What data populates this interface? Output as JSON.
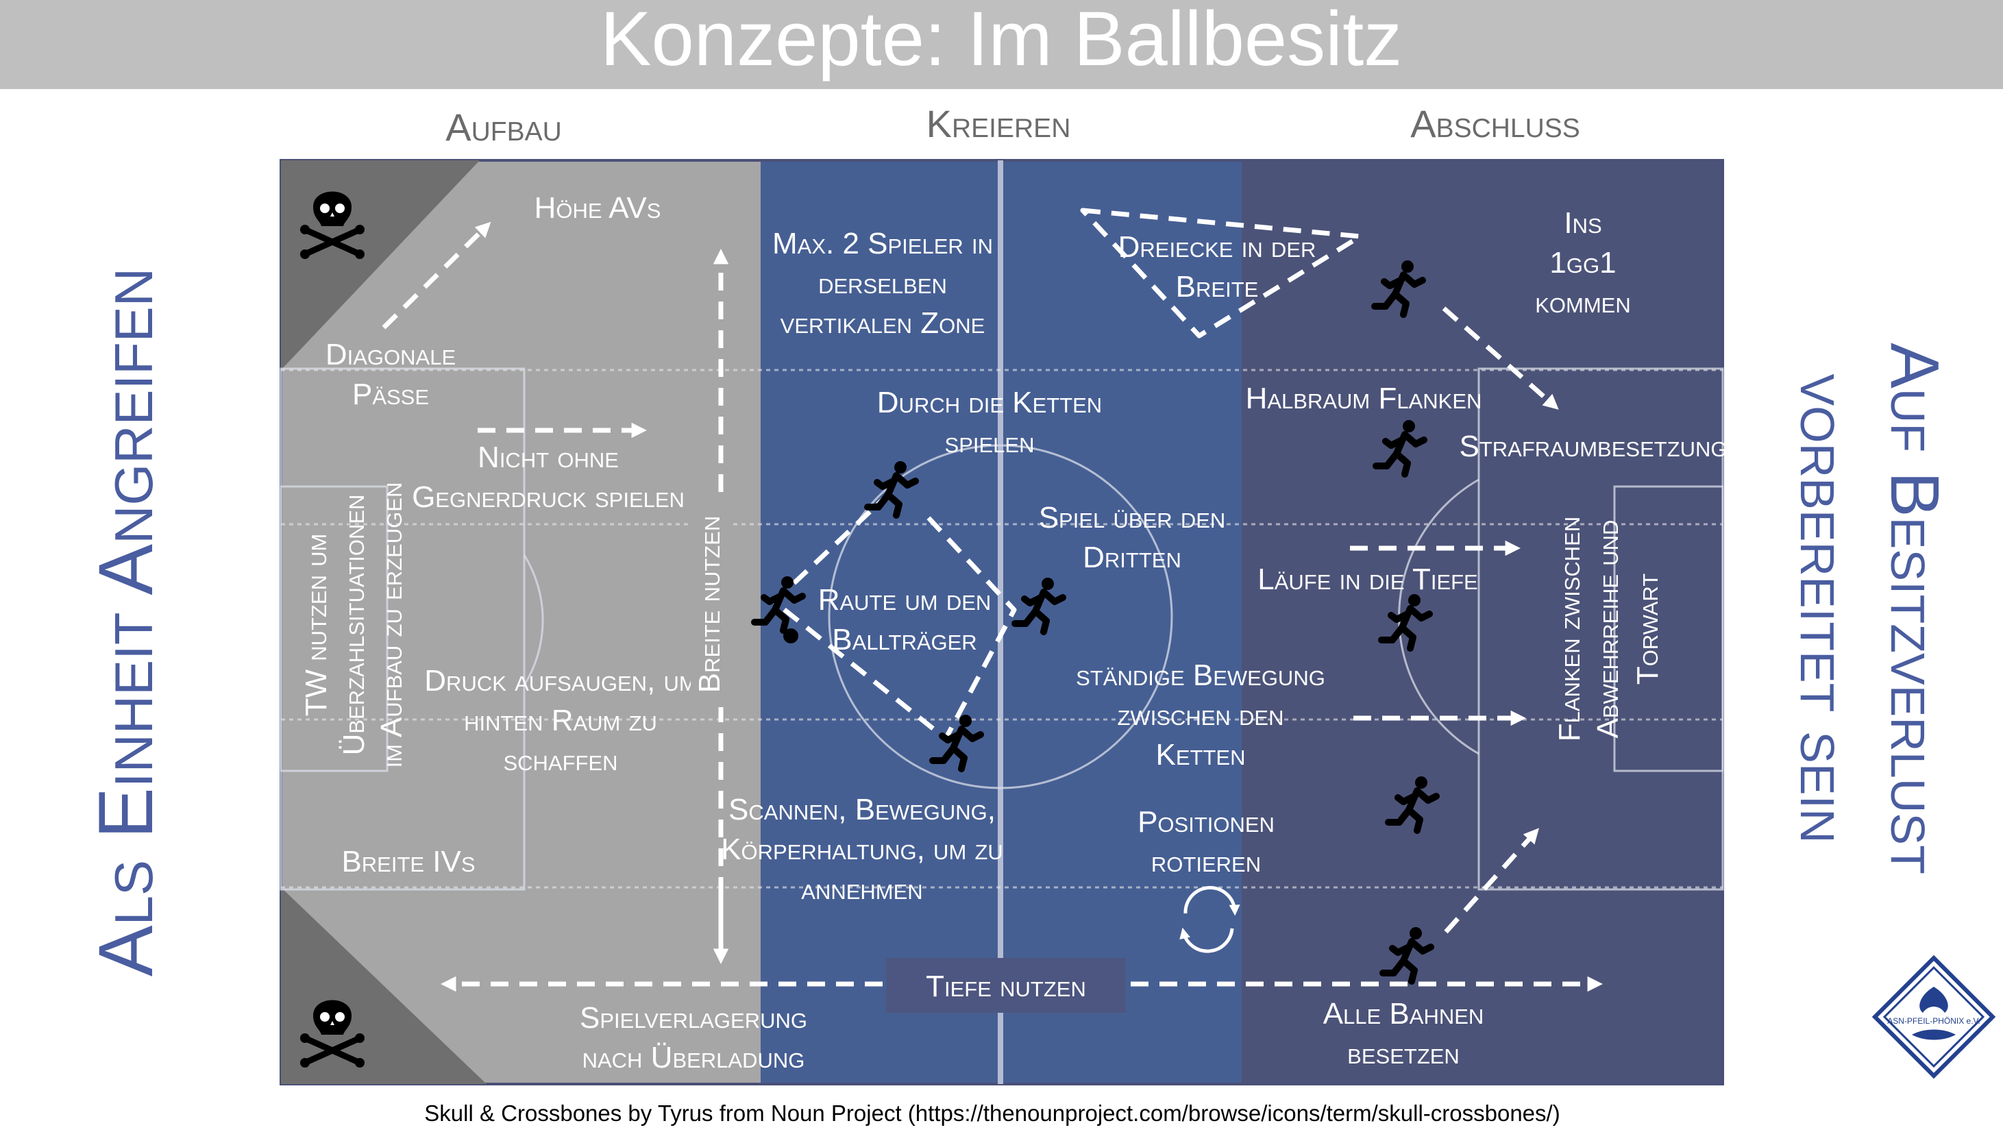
{
  "title": "Konzepte: Im Ballbesitz",
  "columns": {
    "aufbau": "Aufbau",
    "kreieren": "Kreieren",
    "abschluss": "Abschluss"
  },
  "side_left": "Als Einheit Angreifen",
  "side_right_1": "Auf Besitzverlust",
  "side_right_2": "vorbereitet sein",
  "colors": {
    "aufbau": "#a6a6a6",
    "kreieren": "#465f93",
    "abschluss": "#4c5378",
    "header": "#bfbfbf",
    "side_text": "#4a5da0",
    "corner": "#6f6f6f"
  },
  "aufbau": {
    "hoehe_avs": "Höhe AVs",
    "diagonale_1": "Diagonale",
    "diagonale_2": "Pässe",
    "nicht_1": "Nicht ohne",
    "nicht_2": "Gegnerdruck spielen",
    "tw_1": "TW nutzen um",
    "tw_2": "Überzahlsituationen",
    "tw_3": "im Aufbau zu erzeugen",
    "druck_1": "Druck aufsaugen, um",
    "druck_2": "hinten Raum zu",
    "druck_3": "schaffen",
    "breite_ivs": "Breite IVs",
    "breite_nutzen": "Breite nutzen",
    "spielverlagerung_1": "Spielverlagerung",
    "spielverlagerung_2": "nach Überladung"
  },
  "kreieren": {
    "max_1": "Max. 2 Spieler in",
    "max_2": "derselben",
    "max_3": "vertikalen Zone",
    "dreiecke_1": "Dreiecke in der",
    "dreiecke_2": "Breite",
    "durch_1": "Durch die Ketten",
    "durch_2": "spielen",
    "spiel_1": "Spiel über den",
    "spiel_2": "Dritten",
    "raute_1": "Raute um den",
    "raute_2": "Ballträger",
    "staendige_1": "ständige Bewegung",
    "staendige_2": "zwischen den",
    "staendige_3": "Ketten",
    "scannen_1": "Scannen, Bewegung,",
    "scannen_2": "Körperhaltung, um zu",
    "scannen_3": "annehmen",
    "positionen_1": "Positionen",
    "positionen_2": "rotieren",
    "tiefe_nutzen": "Tiefe nutzen"
  },
  "abschluss": {
    "ins_1": "Ins",
    "ins_2": "1gg1",
    "ins_3": "kommen",
    "halbraum": "Halbraum Flanken",
    "strafraum": "Strafraumbesetzung",
    "laeufe": "Läufe in die Tiefe",
    "flanken_1": "Flanken zwischen",
    "flanken_2": "Abwehrreihe und",
    "flanken_3": "Torwart",
    "alle_1": "Alle Bahnen",
    "alle_2": "besetzen"
  },
  "logo_text": "ASN-PFEIL-PHÖNIX e.V.",
  "credit": "Skull & Crossbones by Tyrus from Noun Project (https://thenounproject.com/browse/icons/term/skull-crossbones/)"
}
